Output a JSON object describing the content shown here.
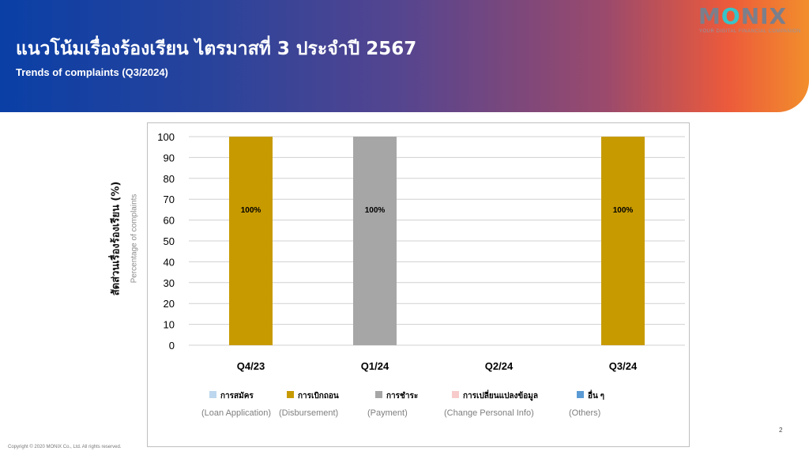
{
  "header": {
    "title": "แนวโน้มเรื่องร้องเรียน ไตรมาสที่ 3 ประจำปี 2567",
    "subtitle": "Trends of complaints (Q3/2024)",
    "logo": "MONIX",
    "logo_tagline": "YOUR DIGITAL FINANCIAL COMPANION"
  },
  "colors": {
    "header_start": "#0a3fa6",
    "header_end": "#f28e2c",
    "disbursement": "#c79a00",
    "payment": "#a6a6a6",
    "loan_application": "#bdd7ee",
    "change_personal_info": "#f8cbcb",
    "others": "#5b9bd5"
  },
  "chart_data": {
    "type": "bar",
    "stacked": true,
    "categories": [
      "Q4/23",
      "Q1/24",
      "Q2/24",
      "Q3/24"
    ],
    "ylabel": "สัดส่วนเรื่องร้องเรียน (%)",
    "ylabel_secondary": "Percentage of complaints",
    "ylim": [
      0,
      100
    ],
    "yticks": [
      0,
      10,
      20,
      30,
      40,
      50,
      60,
      70,
      80,
      90,
      100
    ],
    "grid": true,
    "legend_position": "bottom",
    "series": [
      {
        "name": "การสมัคร",
        "name_en": "(Loan Application)",
        "color": "#bdd7ee",
        "values": [
          0,
          0,
          0,
          0
        ],
        "labels": [
          "",
          "",
          "",
          ""
        ]
      },
      {
        "name": "การเบิกถอน",
        "name_en": "(Disbursement)",
        "color": "#c79a00",
        "values": [
          100,
          0,
          0,
          100
        ],
        "labels": [
          "100%",
          "",
          "",
          "100%"
        ]
      },
      {
        "name": "การชำระ",
        "name_en": "(Payment)",
        "color": "#a6a6a6",
        "values": [
          0,
          100,
          0,
          0
        ],
        "labels": [
          "",
          "100%",
          "",
          ""
        ]
      },
      {
        "name": "การเปลี่ยนแปลงข้อมูล",
        "name_en": "(Change Personal Info)",
        "color": "#f8cbcb",
        "values": [
          0,
          0,
          0,
          0
        ],
        "labels": [
          "",
          "",
          "",
          ""
        ]
      },
      {
        "name": "อื่น ๆ",
        "name_en": "(Others)",
        "color": "#5b9bd5",
        "values": [
          0,
          0,
          0,
          0
        ],
        "labels": [
          "",
          "",
          "",
          ""
        ]
      }
    ]
  },
  "footer": {
    "copyright": "Copyright © 2020 MONIX Co., Ltd. All rights reserved.",
    "page_number": "2"
  }
}
